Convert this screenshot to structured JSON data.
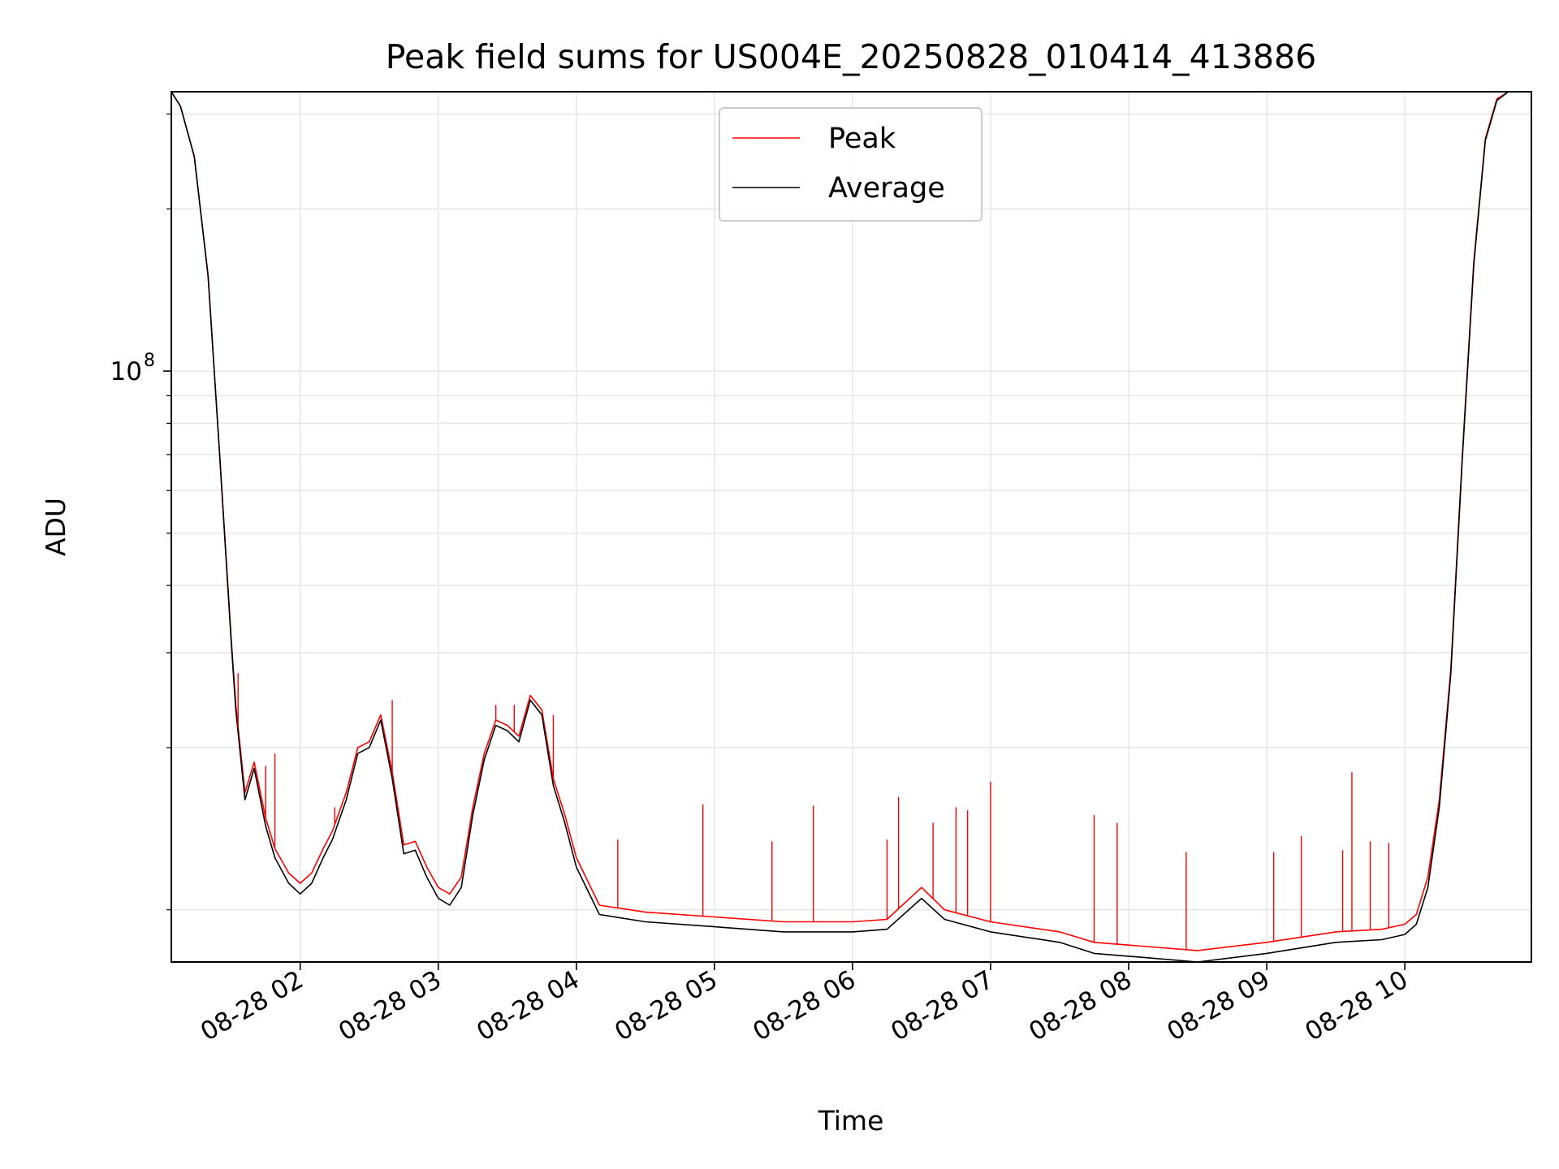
{
  "chart_data": {
    "type": "line",
    "title": "Peak field sums for US004E_20250828_010414_413886",
    "xlabel": "Time",
    "ylabel": "ADU",
    "yscale": "log",
    "ylim": [
      8000000,
      330000000
    ],
    "xlim": [
      "2025-08-28 01:04",
      "2025-08-28 10:55"
    ],
    "grid": true,
    "legend_position": "top-center",
    "x_tick_labels": [
      "08-28 02",
      "08-28 03",
      "08-28 04",
      "08-28 05",
      "08-28 06",
      "08-28 07",
      "08-28 08",
      "08-28 09",
      "08-28 10"
    ],
    "x_ticks": [
      "2025-08-28 02:00",
      "2025-08-28 03:00",
      "2025-08-28 04:00",
      "2025-08-28 05:00",
      "2025-08-28 06:00",
      "2025-08-28 07:00",
      "2025-08-28 08:00",
      "2025-08-28 09:00",
      "2025-08-28 10:00"
    ],
    "y_major_ticks": [
      {
        "value": 100000000,
        "base": "10",
        "exp": "8"
      }
    ],
    "y_minor_ticks": [
      10000000,
      20000000,
      30000000,
      40000000,
      50000000,
      60000000,
      70000000,
      80000000,
      90000000,
      200000000,
      300000000
    ],
    "series": [
      {
        "name": "Peak",
        "color": "#ff0000",
        "x": [
          "01:04",
          "01:08",
          "01:14",
          "01:20",
          "01:25",
          "01:30",
          "01:32",
          "01:36",
          "01:40",
          "01:45",
          "01:49",
          "01:55",
          "02:00",
          "02:05",
          "02:10",
          "02:14",
          "02:20",
          "02:25",
          "02:30",
          "02:35",
          "02:40",
          "02:45",
          "02:50",
          "02:55",
          "03:00",
          "03:05",
          "03:10",
          "03:15",
          "03:20",
          "03:25",
          "03:30",
          "03:35",
          "03:40",
          "03:45",
          "03:50",
          "03:55",
          "04:00",
          "04:10",
          "04:30",
          "05:00",
          "05:30",
          "06:00",
          "06:15",
          "06:30",
          "06:40",
          "07:00",
          "07:30",
          "07:45",
          "08:00",
          "08:30",
          "09:00",
          "09:30",
          "09:50",
          "10:00",
          "10:05",
          "10:10",
          "10:15",
          "10:20",
          "10:25",
          "10:30",
          "10:35",
          "10:40",
          "10:45",
          "10:50",
          "10:55"
        ],
        "values": [
          330000000,
          310000000,
          250000000,
          150000000,
          70000000,
          32000000,
          24000000,
          16500000,
          18800000,
          14800000,
          13000000,
          11700000,
          11200000,
          11700000,
          13000000,
          14000000,
          16500000,
          20000000,
          20500000,
          23000000,
          18000000,
          13200000,
          13400000,
          12000000,
          11000000,
          10700000,
          11500000,
          15500000,
          19500000,
          22500000,
          22000000,
          21000000,
          25000000,
          23500000,
          17500000,
          15000000,
          12500000,
          10200000,
          9900000,
          9700000,
          9500000,
          9500000,
          9600000,
          11000000,
          10000000,
          9500000,
          9100000,
          8700000,
          8600000,
          8400000,
          8700000,
          9100000,
          9200000,
          9400000,
          9800000,
          11500000,
          16000000,
          28000000,
          70000000,
          160000000,
          270000000,
          320000000,
          330000000,
          330000000,
          330000000
        ]
      },
      {
        "name": "Average",
        "color": "#000000",
        "x": [
          "01:04",
          "01:08",
          "01:14",
          "01:20",
          "01:25",
          "01:30",
          "01:32",
          "01:36",
          "01:40",
          "01:45",
          "01:49",
          "01:55",
          "02:00",
          "02:05",
          "02:10",
          "02:14",
          "02:20",
          "02:25",
          "02:30",
          "02:35",
          "02:40",
          "02:45",
          "02:50",
          "02:55",
          "03:00",
          "03:05",
          "03:10",
          "03:15",
          "03:20",
          "03:25",
          "03:30",
          "03:35",
          "03:40",
          "03:45",
          "03:50",
          "03:55",
          "04:00",
          "04:10",
          "04:30",
          "05:00",
          "05:30",
          "06:00",
          "06:15",
          "06:30",
          "06:40",
          "07:00",
          "07:30",
          "07:45",
          "08:00",
          "08:30",
          "09:00",
          "09:30",
          "09:50",
          "10:00",
          "10:05",
          "10:10",
          "10:15",
          "10:20",
          "10:25",
          "10:30",
          "10:35",
          "10:40",
          "10:45",
          "10:50",
          "10:55"
        ],
        "values": [
          330000000,
          310000000,
          250000000,
          150000000,
          70000000,
          31500000,
          23500000,
          16000000,
          18300000,
          14300000,
          12500000,
          11200000,
          10700000,
          11200000,
          12500000,
          13500000,
          16000000,
          19500000,
          20000000,
          22500000,
          17500000,
          12700000,
          12900000,
          11500000,
          10500000,
          10200000,
          11000000,
          15000000,
          19000000,
          22000000,
          21500000,
          20500000,
          24500000,
          23000000,
          17000000,
          14500000,
          12000000,
          9800000,
          9500000,
          9300000,
          9100000,
          9100000,
          9200000,
          10500000,
          9600000,
          9100000,
          8700000,
          8300000,
          8200000,
          8000000,
          8300000,
          8700000,
          8800000,
          9000000,
          9400000,
          11000000,
          15500000,
          27500000,
          69000000,
          158000000,
          268000000,
          318000000,
          330000000,
          330000000,
          330000000
        ]
      }
    ],
    "spikes": [
      {
        "series": "Peak",
        "x": "01:33",
        "value": 27500000
      },
      {
        "series": "Peak",
        "x": "01:45",
        "value": 18500000
      },
      {
        "series": "Peak",
        "x": "01:49",
        "value": 19500000
      },
      {
        "series": "Peak",
        "x": "02:15",
        "value": 15500000
      },
      {
        "series": "Peak",
        "x": "02:40",
        "value": 24500000
      },
      {
        "series": "Peak",
        "x": "03:25",
        "value": 24000000
      },
      {
        "series": "Peak",
        "x": "03:33",
        "value": 24000000
      },
      {
        "series": "Peak",
        "x": "03:50",
        "value": 23000000
      },
      {
        "series": "Peak",
        "x": "04:18",
        "value": 13500000
      },
      {
        "series": "Peak",
        "x": "04:55",
        "value": 15700000
      },
      {
        "series": "Peak",
        "x": "05:25",
        "value": 13400000
      },
      {
        "series": "Peak",
        "x": "05:43",
        "value": 15600000
      },
      {
        "series": "Peak",
        "x": "06:15",
        "value": 13500000
      },
      {
        "series": "Peak",
        "x": "06:20",
        "value": 16200000
      },
      {
        "series": "Peak",
        "x": "06:35",
        "value": 14500000
      },
      {
        "series": "Peak",
        "x": "06:45",
        "value": 15500000
      },
      {
        "series": "Peak",
        "x": "06:50",
        "value": 15300000
      },
      {
        "series": "Peak",
        "x": "07:00",
        "value": 17300000
      },
      {
        "series": "Peak",
        "x": "07:45",
        "value": 15000000
      },
      {
        "series": "Peak",
        "x": "07:55",
        "value": 14500000
      },
      {
        "series": "Peak",
        "x": "08:25",
        "value": 12800000
      },
      {
        "series": "Peak",
        "x": "09:03",
        "value": 12800000
      },
      {
        "series": "Peak",
        "x": "09:15",
        "value": 13700000
      },
      {
        "series": "Peak",
        "x": "09:33",
        "value": 12900000
      },
      {
        "series": "Peak",
        "x": "09:37",
        "value": 18000000
      },
      {
        "series": "Peak",
        "x": "09:45",
        "value": 13400000
      },
      {
        "series": "Peak",
        "x": "09:53",
        "value": 13300000
      }
    ]
  }
}
